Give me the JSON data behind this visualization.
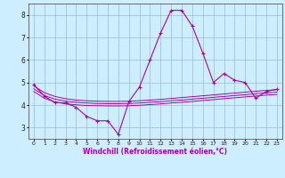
{
  "x": [
    0,
    1,
    2,
    3,
    4,
    5,
    6,
    7,
    8,
    9,
    10,
    11,
    12,
    13,
    14,
    15,
    16,
    17,
    18,
    19,
    20,
    21,
    22,
    23
  ],
  "y_main": [
    4.9,
    4.4,
    4.1,
    4.1,
    3.9,
    3.5,
    3.3,
    3.3,
    2.7,
    4.15,
    4.8,
    6.0,
    7.2,
    8.2,
    8.2,
    7.5,
    6.3,
    5.0,
    5.4,
    5.1,
    5.0,
    4.3,
    4.6,
    4.7
  ],
  "y_line1": [
    4.85,
    4.55,
    4.38,
    4.28,
    4.22,
    4.19,
    4.17,
    4.16,
    4.16,
    4.17,
    4.19,
    4.22,
    4.25,
    4.29,
    4.33,
    4.37,
    4.41,
    4.45,
    4.49,
    4.53,
    4.57,
    4.61,
    4.65,
    4.68
  ],
  "y_line2": [
    4.72,
    4.42,
    4.26,
    4.17,
    4.12,
    4.09,
    4.07,
    4.06,
    4.06,
    4.07,
    4.09,
    4.12,
    4.15,
    4.19,
    4.22,
    4.26,
    4.3,
    4.34,
    4.38,
    4.42,
    4.46,
    4.5,
    4.54,
    4.57
  ],
  "y_line3": [
    4.6,
    4.3,
    4.14,
    4.05,
    4.01,
    3.98,
    3.97,
    3.96,
    3.96,
    3.97,
    3.99,
    4.02,
    4.05,
    4.09,
    4.12,
    4.16,
    4.2,
    4.24,
    4.28,
    4.32,
    4.36,
    4.4,
    4.44,
    4.47
  ],
  "line_color": "#aa00aa",
  "bg_color": "#cceeff",
  "grid_color": "#99bbcc",
  "xlabel": "Windchill (Refroidissement éolien,°C)",
  "ylim": [
    2.5,
    8.5
  ],
  "xlim": [
    -0.5,
    23.5
  ],
  "yticks": [
    3,
    4,
    5,
    6,
    7,
    8
  ],
  "xticks": [
    0,
    1,
    2,
    3,
    4,
    5,
    6,
    7,
    8,
    9,
    10,
    11,
    12,
    13,
    14,
    15,
    16,
    17,
    18,
    19,
    20,
    21,
    22,
    23
  ]
}
